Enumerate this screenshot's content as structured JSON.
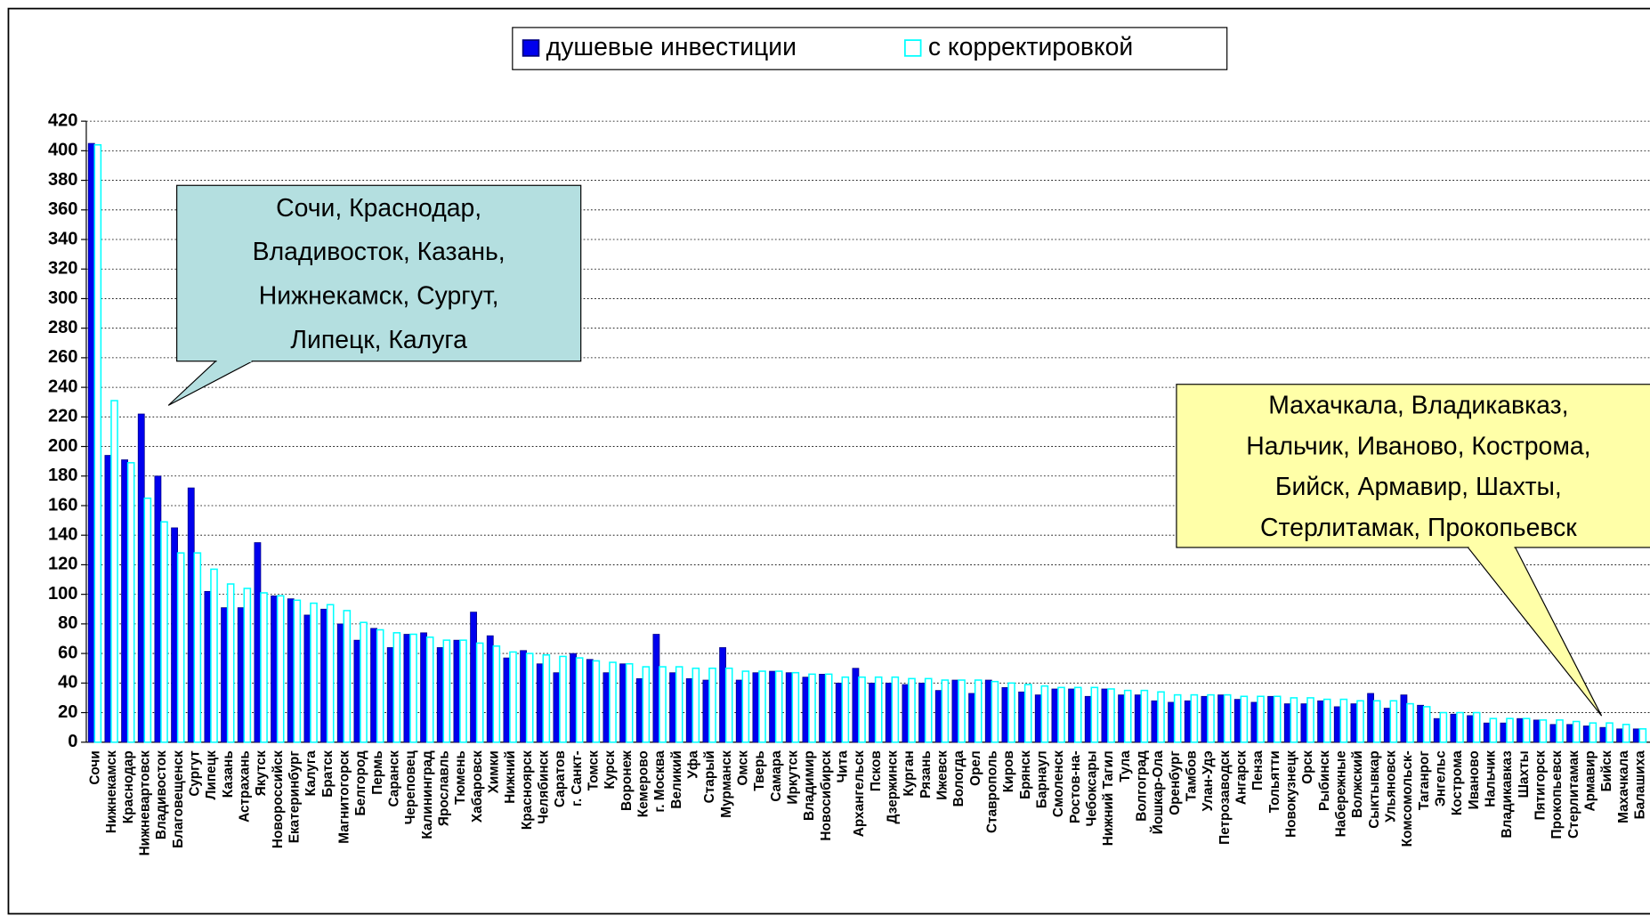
{
  "chart_data": {
    "type": "bar",
    "categories": [
      "Сочи",
      "Нижнекамск",
      "Краснодар",
      "Нижневартовск",
      "Владивосток",
      "Благовещенск",
      "Сургут",
      "Липецк",
      "Казань",
      "Астрахань",
      "Якутск",
      "Новороссийск",
      "Екатеринбург",
      "Калуга",
      "Братск",
      "Магнитогорск",
      "Белгород",
      "Пермь",
      "Саранск",
      "Череповец",
      "Калининград",
      "Ярославль",
      "Тюмень",
      "Хабаровск",
      "Химки",
      "Нижний",
      "Красноярск",
      "Челябинск",
      "Саратов",
      "г. Санкт-",
      "Томск",
      "Курск",
      "Воронеж",
      "Кемерово",
      "г. Москва",
      "Великий",
      "Уфа",
      "Старый",
      "Мурманск",
      "Омск",
      "Тверь",
      "Самара",
      "Иркутск",
      "Владимир",
      "Новосибирск",
      "Чита",
      "Архангельск",
      "Псков",
      "Дзержинск",
      "Курган",
      "Рязань",
      "Ижевск",
      "Вологда",
      "Орел",
      "Ставрополь",
      "Киров",
      "Брянск",
      "Барнаул",
      "Смоленск",
      "Ростов-на-",
      "Чебоксары",
      "Нижний Тагил",
      "Тула",
      "Волгоград",
      "Йошкар-Ола",
      "Оренбург",
      "Тамбов",
      "Улан-Удэ",
      "Петрозаводск",
      "Ангарск",
      "Пенза",
      "Тольятти",
      "Новокузнецк",
      "Орск",
      "Рыбинск",
      "Набережные",
      "Волжский",
      "Сыктывкар",
      "Ульяновск",
      "Комсомольск-",
      "Таганрог",
      "Энгельс",
      "Кострома",
      "Иваново",
      "Нальчик",
      "Владикавказ",
      "Шахты",
      "Пятигорск",
      "Прокопьевск",
      "Стерлитамак",
      "Армавир",
      "Бийск",
      "Махачкала",
      "Балашиха"
    ],
    "series": [
      {
        "name": "душевые инвестиции",
        "color": "#0000ee",
        "values": [
          405,
          194,
          191,
          222,
          180,
          145,
          172,
          102,
          91,
          91,
          135,
          99,
          97,
          86,
          90,
          80,
          69,
          77,
          64,
          73,
          74,
          64,
          69,
          88,
          72,
          57,
          62,
          53,
          47,
          60,
          56,
          47,
          53,
          43,
          73,
          47,
          43,
          42,
          64,
          42,
          47,
          48,
          47,
          44,
          46,
          40,
          50,
          40,
          40,
          39,
          40,
          35,
          42,
          33,
          42,
          37,
          34,
          32,
          36,
          36,
          31,
          36,
          32,
          32,
          28,
          27,
          28,
          31,
          32,
          29,
          27,
          31,
          26,
          26,
          28,
          24,
          26,
          33,
          23,
          32,
          25,
          16,
          19,
          18,
          13,
          13,
          16,
          15,
          12,
          12,
          11,
          10,
          9,
          9
        ]
      },
      {
        "name": "с корректировкой",
        "color": "#00ffff",
        "values": [
          404,
          231,
          189,
          165,
          149,
          128,
          128,
          117,
          107,
          104,
          101,
          99,
          96,
          94,
          93,
          89,
          81,
          76,
          74,
          73,
          71,
          69,
          69,
          67,
          65,
          61,
          60,
          59,
          58,
          57,
          55,
          54,
          53,
          51,
          51,
          51,
          50,
          50,
          50,
          48,
          48,
          48,
          47,
          46,
          46,
          44,
          44,
          44,
          44,
          43,
          43,
          42,
          42,
          42,
          41,
          40,
          39,
          38,
          37,
          37,
          37,
          36,
          35,
          35,
          34,
          32,
          32,
          32,
          32,
          31,
          31,
          31,
          30,
          30,
          29,
          29,
          28,
          28,
          28,
          26,
          24,
          20,
          20,
          20,
          16,
          16,
          16,
          15,
          15,
          14,
          13,
          13,
          12,
          9
        ]
      }
    ],
    "ylim": [
      0,
      420
    ],
    "yticks": [
      0,
      20,
      40,
      60,
      80,
      100,
      120,
      140,
      160,
      180,
      200,
      220,
      240,
      260,
      280,
      300,
      320,
      340,
      360,
      380,
      400,
      420
    ],
    "grid": true,
    "annotations": [
      {
        "lines": [
          "Сочи, Краснодар,",
          "Владивосток, Казань,",
          "Нижнекамск, Сургут,",
          "Липецк, Калуга"
        ],
        "color": "#b4dfe0"
      },
      {
        "lines": [
          "Махачкала, Владикавказ,",
          "Нальчик, Иваново, Кострома,",
          "Бийск, Армавир, Шахты,",
          "Стерлитамак, Прокопьевск"
        ],
        "color": "#ffffa8"
      }
    ]
  }
}
